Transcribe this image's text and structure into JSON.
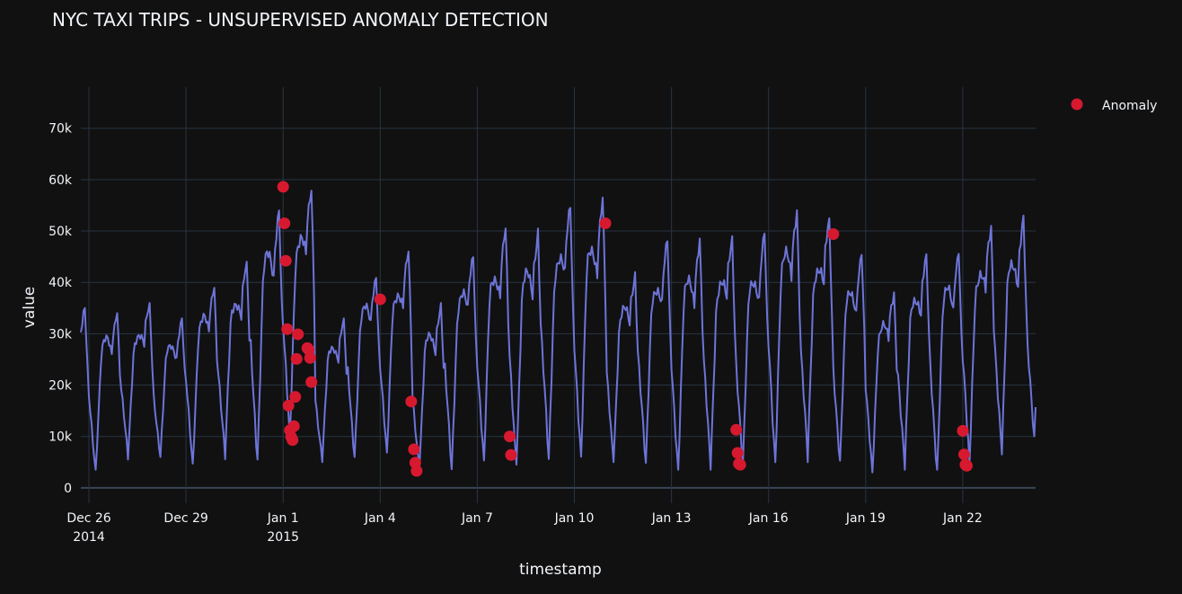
{
  "chart_data": {
    "type": "line",
    "title": "NYC TAXI TRIPS - UNSUPERVISED ANOMALY DETECTION",
    "xlabel": "timestamp",
    "ylabel": "value",
    "ylim": [
      -3000,
      78000
    ],
    "xlim": [
      "2014-12-25T18:00",
      "2015-01-24T06:00"
    ],
    "grid": true,
    "legend_position": "top-right",
    "x_ticks": [
      {
        "date": "2014-12-26",
        "label": "Dec 26",
        "sub": "2014"
      },
      {
        "date": "2014-12-29",
        "label": "Dec 29",
        "sub": ""
      },
      {
        "date": "2015-01-01",
        "label": "Jan 1",
        "sub": "2015"
      },
      {
        "date": "2015-01-04",
        "label": "Jan 4",
        "sub": ""
      },
      {
        "date": "2015-01-07",
        "label": "Jan 7",
        "sub": ""
      },
      {
        "date": "2015-01-10",
        "label": "Jan 10",
        "sub": ""
      },
      {
        "date": "2015-01-13",
        "label": "Jan 13",
        "sub": ""
      },
      {
        "date": "2015-01-16",
        "label": "Jan 16",
        "sub": ""
      },
      {
        "date": "2015-01-19",
        "label": "Jan 19",
        "sub": ""
      },
      {
        "date": "2015-01-22",
        "label": "Jan 22",
        "sub": ""
      }
    ],
    "y_ticks": [
      {
        "value": 0,
        "label": "0"
      },
      {
        "value": 10000,
        "label": "10k"
      },
      {
        "value": 20000,
        "label": "20k"
      },
      {
        "value": 30000,
        "label": "30k"
      },
      {
        "value": 40000,
        "label": "40k"
      },
      {
        "value": 50000,
        "label": "50k"
      },
      {
        "value": 60000,
        "label": "60k"
      },
      {
        "value": 70000,
        "label": "70k"
      }
    ],
    "series": [
      {
        "color": "#6d74d8",
        "daily_profile": [
          {
            "date": "2014-12-26",
            "min": 3500,
            "max": 35000
          },
          {
            "date": "2014-12-27",
            "min": 5500,
            "max": 36000
          },
          {
            "date": "2014-12-28",
            "min": 6000,
            "max": 33000
          },
          {
            "date": "2014-12-29",
            "min": 4500,
            "max": 40000
          },
          {
            "date": "2014-12-30",
            "min": 5500,
            "max": 44000
          },
          {
            "date": "2014-12-31",
            "min": 5500,
            "max": 55000
          },
          {
            "date": "2015-01-01",
            "min": 9000,
            "max": 58500
          },
          {
            "date": "2015-01-02",
            "min": 5000,
            "max": 33000
          },
          {
            "date": "2015-01-03",
            "min": 6000,
            "max": 42000
          },
          {
            "date": "2015-01-04",
            "min": 5500,
            "max": 46000
          },
          {
            "date": "2015-01-05",
            "min": 3500,
            "max": 36000
          },
          {
            "date": "2015-01-06",
            "min": 3500,
            "max": 46000
          },
          {
            "date": "2015-01-07",
            "min": 4000,
            "max": 50500
          },
          {
            "date": "2015-01-08",
            "min": 4500,
            "max": 50500
          },
          {
            "date": "2015-01-09",
            "min": 4500,
            "max": 55000
          },
          {
            "date": "2015-01-10",
            "min": 5500,
            "max": 56500
          },
          {
            "date": "2015-01-11",
            "min": 5000,
            "max": 42000
          },
          {
            "date": "2015-01-12",
            "min": 3500,
            "max": 48000
          },
          {
            "date": "2015-01-13",
            "min": 3500,
            "max": 49000
          },
          {
            "date": "2015-01-14",
            "min": 3500,
            "max": 49000
          },
          {
            "date": "2015-01-15",
            "min": 4000,
            "max": 49500
          },
          {
            "date": "2015-01-16",
            "min": 5000,
            "max": 55000
          },
          {
            "date": "2015-01-17",
            "min": 5000,
            "max": 52500
          },
          {
            "date": "2015-01-18",
            "min": 5000,
            "max": 46000
          },
          {
            "date": "2015-01-19",
            "min": 3000,
            "max": 38500
          },
          {
            "date": "2015-01-20",
            "min": 3500,
            "max": 45500
          },
          {
            "date": "2015-01-21",
            "min": 3500,
            "max": 47000
          },
          {
            "date": "2015-01-22",
            "min": 4000,
            "max": 51000
          },
          {
            "date": "2015-01-23",
            "min": 6500,
            "max": 53000
          },
          {
            "date": "2015-01-24",
            "min": 10000,
            "max": 48000
          }
        ]
      },
      {
        "name": "Anomaly",
        "color": "#d7192f",
        "points": [
          {
            "t": "2015-01-01T00:00",
            "v": 58600
          },
          {
            "t": "2015-01-01T01:00",
            "v": 51500
          },
          {
            "t": "2015-01-01T02:00",
            "v": 44200
          },
          {
            "t": "2015-01-01T03:00",
            "v": 30900
          },
          {
            "t": "2015-01-01T04:00",
            "v": 16000
          },
          {
            "t": "2015-01-01T05:00",
            "v": 11200
          },
          {
            "t": "2015-01-01T06:00",
            "v": 9900
          },
          {
            "t": "2015-01-01T07:00",
            "v": 9300
          },
          {
            "t": "2015-01-01T08:00",
            "v": 12000
          },
          {
            "t": "2015-01-01T09:00",
            "v": 17700
          },
          {
            "t": "2015-01-01T10:00",
            "v": 25100
          },
          {
            "t": "2015-01-01T11:00",
            "v": 29900
          },
          {
            "t": "2015-01-01T18:00",
            "v": 27200
          },
          {
            "t": "2015-01-01T19:00",
            "v": 26900
          },
          {
            "t": "2015-01-01T20:00",
            "v": 25300
          },
          {
            "t": "2015-01-01T21:00",
            "v": 20600
          },
          {
            "t": "2015-01-04T00:00",
            "v": 36700
          },
          {
            "t": "2015-01-04T23:00",
            "v": 16800
          },
          {
            "t": "2015-01-05T01:00",
            "v": 7500
          },
          {
            "t": "2015-01-05T02:00",
            "v": 4900
          },
          {
            "t": "2015-01-05T03:00",
            "v": 3300
          },
          {
            "t": "2015-01-08T00:00",
            "v": 10000
          },
          {
            "t": "2015-01-08T01:00",
            "v": 6400
          },
          {
            "t": "2015-01-10T23:00",
            "v": 51500
          },
          {
            "t": "2015-01-15T00:00",
            "v": 11300
          },
          {
            "t": "2015-01-15T01:00",
            "v": 6800
          },
          {
            "t": "2015-01-15T02:00",
            "v": 4700
          },
          {
            "t": "2015-01-15T03:00",
            "v": 4500
          },
          {
            "t": "2015-01-18T00:00",
            "v": 49400
          },
          {
            "t": "2015-01-22T00:00",
            "v": 11100
          },
          {
            "t": "2015-01-22T01:00",
            "v": 6500
          },
          {
            "t": "2015-01-22T02:00",
            "v": 4500
          },
          {
            "t": "2015-01-22T03:00",
            "v": 4300
          }
        ]
      }
    ]
  },
  "colors": {
    "background": "#111111",
    "grid": "#283442",
    "text": "#f2f5fa",
    "line": "#6d74d8",
    "anomaly": "#d7192f"
  }
}
